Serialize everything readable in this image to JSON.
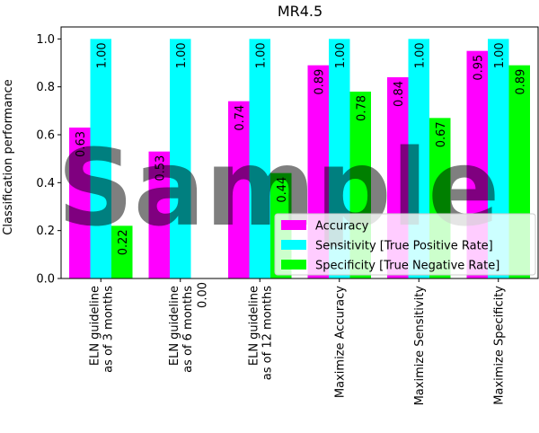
{
  "chart_data": {
    "type": "bar",
    "title": "MR4.5",
    "ylabel": "Classification performance",
    "xlabel": "",
    "ylim": [
      0,
      1.05
    ],
    "yticks": [
      "0.0",
      "0.2",
      "0.4",
      "0.6",
      "0.8",
      "1.0"
    ],
    "categories": [
      [
        "ELN guideline",
        "as of 3 months"
      ],
      [
        "ELN guideline",
        "as of 6 months"
      ],
      [
        "ELN guideline",
        "as of 12 months"
      ],
      [
        "Maximize Accuracy"
      ],
      [
        "Maximize Sensitivity"
      ],
      [
        "Maximize Specificity"
      ]
    ],
    "series": [
      {
        "name": "Accuracy",
        "color": "#ff00ff",
        "values": [
          0.63,
          0.53,
          0.74,
          0.89,
          0.84,
          0.95
        ],
        "labels": [
          "0.63",
          "0.53",
          "0.74",
          "0.89",
          "0.84",
          "0.95"
        ]
      },
      {
        "name": "Sensitivity [True Positive Rate]",
        "color": "#00ffff",
        "values": [
          1.0,
          1.0,
          1.0,
          1.0,
          1.0,
          1.0
        ],
        "labels": [
          "1.00",
          "1.00",
          "1.00",
          "1.00",
          "1.00",
          "1.00"
        ]
      },
      {
        "name": "Specificity [True Negative Rate]",
        "color": "#00ff00",
        "values": [
          0.22,
          0.0,
          0.44,
          0.78,
          0.67,
          0.89
        ],
        "labels": [
          "0.22",
          "0.00",
          "0.44",
          "0.78",
          "0.67",
          "0.89"
        ]
      }
    ],
    "legend_position": "lower-right",
    "grid": false
  },
  "watermark": "Sample"
}
